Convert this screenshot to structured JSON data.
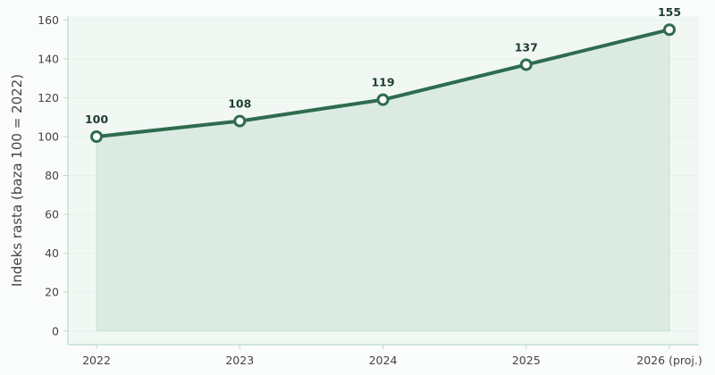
{
  "chart_data": {
    "type": "area",
    "title": "",
    "xlabel": "",
    "ylabel": "Indeks rasta (baza 100 = 2022)",
    "categories": [
      "2022",
      "2023",
      "2024",
      "2025",
      "2026 (proj.)"
    ],
    "values": [
      100,
      108,
      119,
      137,
      155
    ],
    "data_labels": [
      "100",
      "108",
      "119",
      "137",
      "155"
    ],
    "yticks": [
      0,
      20,
      40,
      60,
      80,
      100,
      120,
      140,
      160
    ],
    "ylim": [
      -7,
      162
    ],
    "grid": true,
    "legend": "none",
    "colors": {
      "line": "#2f6b4f",
      "fill": "#dbebe3",
      "plot_bg": "#f1f8f4",
      "axis": "#b7dcc8",
      "grid": "#e6f0ea"
    }
  }
}
